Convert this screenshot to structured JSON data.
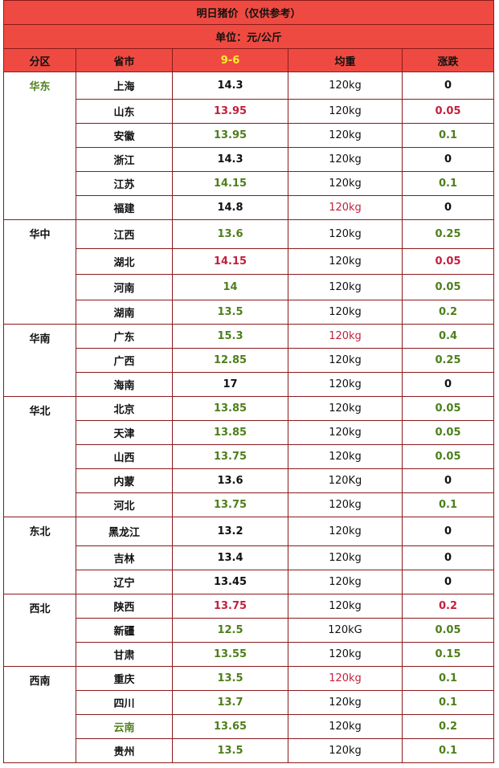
{
  "title": "明日猪价（仅供参考）",
  "unit": "单位：元/公斤",
  "headers": {
    "region": "分区",
    "province": "省市",
    "date": "9-6",
    "weight": "均重",
    "change": "涨跌"
  },
  "colors": {
    "header_bg": "#ef4a41",
    "green": "#4d7f1b",
    "red": "#c41f3c",
    "date_yellow": "#ffee33"
  },
  "groups": [
    {
      "region": "华东",
      "rows": [
        {
          "province": "上海",
          "price": "14.3",
          "price_color": "k",
          "weight": "120kg",
          "weight_color": "w",
          "change": "0",
          "change_color": "k"
        },
        {
          "province": "山东",
          "price": "13.95",
          "price_color": "r",
          "weight": "120kg",
          "weight_color": "w",
          "change": "0.05",
          "change_color": "r"
        },
        {
          "province": "安徽",
          "price": "13.95",
          "price_color": "g",
          "weight": "120kg",
          "weight_color": "w",
          "change": "0.1",
          "change_color": "g"
        },
        {
          "province": "浙江",
          "price": "14.3",
          "price_color": "k",
          "weight": "120kg",
          "weight_color": "w",
          "change": "0",
          "change_color": "k"
        },
        {
          "province": "江苏",
          "price": "14.15",
          "price_color": "g",
          "weight": "120kg",
          "weight_color": "w",
          "change": "0.1",
          "change_color": "g"
        },
        {
          "province": "福建",
          "price": "14.8",
          "price_color": "k",
          "weight": "120kg",
          "weight_color": "rw",
          "change": "0",
          "change_color": "k"
        }
      ]
    },
    {
      "region": "华中",
      "rows": [
        {
          "province": "江西",
          "price": "13.6",
          "price_color": "g",
          "weight": "120kg",
          "weight_color": "w",
          "change": "0.25",
          "change_color": "g"
        },
        {
          "province": "湖北",
          "price": "14.15",
          "price_color": "r",
          "weight": "120kg",
          "weight_color": "w",
          "change": "0.05",
          "change_color": "r"
        },
        {
          "province": "河南",
          "price": "14",
          "price_color": "g",
          "weight": "120kg",
          "weight_color": "w",
          "change": "0.05",
          "change_color": "g"
        },
        {
          "province": "湖南",
          "price": "13.5",
          "price_color": "g",
          "weight": "120kg",
          "weight_color": "w",
          "change": "0.2",
          "change_color": "g"
        }
      ]
    },
    {
      "region": "华南",
      "rows": [
        {
          "province": "广东",
          "price": "15.3",
          "price_color": "g",
          "weight": "120kg",
          "weight_color": "rw",
          "change": "0.4",
          "change_color": "g"
        },
        {
          "province": "广西",
          "price": "12.85",
          "price_color": "g",
          "weight": "120kg",
          "weight_color": "w",
          "change": "0.25",
          "change_color": "g"
        },
        {
          "province": "海南",
          "price": "17",
          "price_color": "k",
          "weight": "120kg",
          "weight_color": "w",
          "change": "0",
          "change_color": "k"
        }
      ]
    },
    {
      "region": "华北",
      "rows": [
        {
          "province": "北京",
          "price": "13.85",
          "price_color": "g",
          "weight": "120kg",
          "weight_color": "w",
          "change": "0.05",
          "change_color": "g"
        },
        {
          "province": "天津",
          "price": "13.85",
          "price_color": "g",
          "weight": "120kg",
          "weight_color": "w",
          "change": "0.05",
          "change_color": "g"
        },
        {
          "province": "山西",
          "price": "13.75",
          "price_color": "g",
          "weight": "120kg",
          "weight_color": "w",
          "change": "0.05",
          "change_color": "g"
        },
        {
          "province": "内蒙",
          "price": "13.6",
          "price_color": "k",
          "weight": "120Kg",
          "weight_color": "w",
          "change": "0",
          "change_color": "k"
        },
        {
          "province": "河北",
          "price": "13.75",
          "price_color": "g",
          "weight": "120kg",
          "weight_color": "w",
          "change": "0.1",
          "change_color": "g"
        }
      ]
    },
    {
      "region": "东北",
      "rows": [
        {
          "province": "黑龙江",
          "price": "13.2",
          "price_color": "k",
          "weight": "120kg",
          "weight_color": "w",
          "change": "0",
          "change_color": "k"
        },
        {
          "province": "吉林",
          "price": "13.4",
          "price_color": "k",
          "weight": "120kg",
          "weight_color": "w",
          "change": "0",
          "change_color": "k"
        },
        {
          "province": "辽宁",
          "price": "13.45",
          "price_color": "k",
          "weight": "120kg",
          "weight_color": "w",
          "change": "0",
          "change_color": "k"
        }
      ]
    },
    {
      "region": "西北",
      "rows": [
        {
          "province": "陕西",
          "price": "13.75",
          "price_color": "r",
          "weight": "120kg",
          "weight_color": "w",
          "change": "0.2",
          "change_color": "r"
        },
        {
          "province": "新疆",
          "price": "12.5",
          "price_color": "g",
          "weight": "120kG",
          "weight_color": "w",
          "change": "0.05",
          "change_color": "g"
        },
        {
          "province": "甘肃",
          "price": "13.55",
          "price_color": "g",
          "weight": "120kg",
          "weight_color": "w",
          "change": "0.15",
          "change_color": "g"
        }
      ]
    },
    {
      "region": "西南",
      "rows": [
        {
          "province": "重庆",
          "price": "13.5",
          "price_color": "g",
          "weight": "120kg",
          "weight_color": "rw",
          "change": "0.1",
          "change_color": "g"
        },
        {
          "province": "四川",
          "price": "13.7",
          "price_color": "g",
          "weight": "120kg",
          "weight_color": "w",
          "change": "0.1",
          "change_color": "g"
        },
        {
          "province": "云南",
          "price": "13.65",
          "price_color": "g",
          "weight": "120kg",
          "weight_color": "w",
          "change": "0.2",
          "change_color": "g",
          "province_color": "g"
        },
        {
          "province": "贵州",
          "price": "13.5",
          "price_color": "g",
          "weight": "120kg",
          "weight_color": "w",
          "change": "0.1",
          "change_color": "g"
        }
      ]
    }
  ]
}
